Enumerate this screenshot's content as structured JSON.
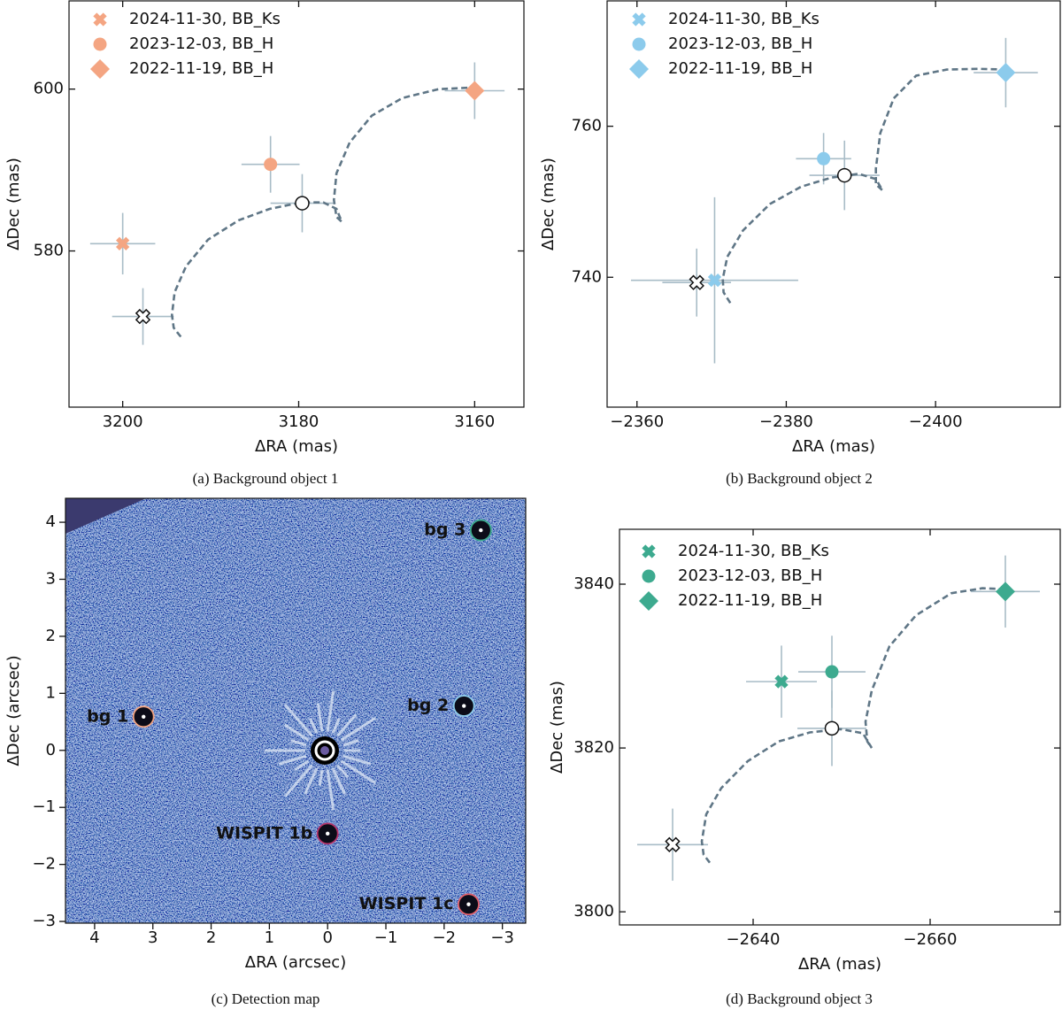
{
  "chart_data": [
    {
      "type": "scatter",
      "caption": "(a) Background object 1",
      "xlabel": "ΔRA (mas)",
      "ylabel": "ΔDec (mas)",
      "xlim": [
        3206.1,
        3154.4
      ],
      "ylim": [
        560.7,
        610.9
      ],
      "xticks": [
        3200,
        3180,
        3160
      ],
      "yticks": [
        580,
        600
      ],
      "legend": "upper left",
      "errorbar_color": "#a8bcc7",
      "series": [
        {
          "name": "2024-11-30, BB_Ks",
          "color": "#f4a582",
          "marker": "X",
          "x": [
            3200
          ],
          "values": [
            580.9
          ],
          "xerr": [
            3.7
          ],
          "yerr": [
            3.8
          ]
        },
        {
          "name": "2023-12-03, BB_H",
          "color": "#f4a582",
          "marker": "o",
          "x": [
            3183.2
          ],
          "values": [
            590.7
          ],
          "xerr": [
            3.3
          ],
          "yerr": [
            3.5
          ]
        },
        {
          "name": "2022-11-19, BB_H",
          "color": "#f4a582",
          "marker": "D",
          "x": [
            3160
          ],
          "values": [
            599.8
          ],
          "xerr": [
            3.4
          ],
          "yerr": [
            3.5
          ]
        }
      ],
      "model_points": [
        {
          "marker": "X",
          "color": "#ffffff",
          "x": [
            3197.7
          ],
          "values": [
            571.9
          ],
          "xerr": [
            3.5
          ],
          "yerr": [
            3.5
          ]
        },
        {
          "marker": "o",
          "color": "#ffffff",
          "x": [
            3179.6
          ],
          "values": [
            585.9
          ],
          "xerr": [
            3.6
          ],
          "yerr": [
            3.6
          ]
        }
      ],
      "track": {
        "color": "#5f7686",
        "x": [
          3193.4,
          3194.2,
          3194.4,
          3194.1,
          3192.8,
          3190.3,
          3186.8,
          3183.3,
          3179.7,
          3177.2,
          3175.7,
          3175.1,
          3175.7,
          3176.0,
          3175.7,
          3174.2,
          3171.7,
          3168.2,
          3164.1,
          3160.0
        ],
        "values": [
          569.4,
          570.5,
          572.1,
          574.9,
          578.1,
          581.4,
          583.8,
          585.2,
          586.0,
          586.0,
          585.2,
          583.6,
          584.2,
          586.3,
          589.6,
          593.4,
          596.7,
          598.9,
          600.0,
          600.2
        ]
      }
    },
    {
      "type": "scatter",
      "caption": "(b) Background object 2",
      "xlabel": "ΔRA (mas)",
      "ylabel": "ΔDec (mas)",
      "xlim": [
        -2356.0,
        -2416.7
      ],
      "ylim": [
        722.8,
        776.6
      ],
      "xticks": [
        {
          "value": -2360,
          "label": "−2360"
        },
        {
          "value": -2380,
          "label": "−2380"
        },
        {
          "value": -2400,
          "label": "−2400"
        }
      ],
      "yticks": [
        740,
        760
      ],
      "legend": "upper left",
      "errorbar_color": "#a8bcc7",
      "series": [
        {
          "name": "2024-11-30, BB_Ks",
          "color": "#8ccbec",
          "marker": "X",
          "x": [
            -2370.4
          ],
          "values": [
            739.6
          ],
          "xerr": [
            11.2
          ],
          "yerr": [
            11.0
          ]
        },
        {
          "name": "2023-12-03, BB_H",
          "color": "#8ccbec",
          "marker": "o",
          "x": [
            -2385.0
          ],
          "values": [
            755.7
          ],
          "xerr": [
            3.7
          ],
          "yerr": [
            3.4
          ]
        },
        {
          "name": "2022-11-19, BB_H",
          "color": "#8ccbec",
          "marker": "D",
          "x": [
            -2409.4
          ],
          "values": [
            767.1
          ],
          "xerr": [
            4.3
          ],
          "yerr": [
            4.6
          ]
        }
      ],
      "model_points": [
        {
          "marker": "X",
          "color": "#ffffff",
          "x": [
            -2368.0
          ],
          "values": [
            739.3
          ],
          "xerr": [
            4.6
          ],
          "yerr": [
            4.5
          ]
        },
        {
          "marker": "o",
          "color": "#ffffff",
          "x": [
            -2387.8
          ],
          "values": [
            753.5
          ],
          "xerr": [
            4.7
          ],
          "yerr": [
            4.6
          ]
        }
      ],
      "track": {
        "color": "#5f7686",
        "x": [
          -2372.5,
          -2371.6,
          -2371.5,
          -2372.1,
          -2374.2,
          -2377.8,
          -2382.0,
          -2386.1,
          -2389.7,
          -2392.0,
          -2392.9,
          -2392.0,
          -2392.0,
          -2392.6,
          -2394.4,
          -2397.4,
          -2401.5,
          -2405.7,
          -2409.4
        ],
        "values": [
          736.6,
          738.0,
          739.8,
          742.7,
          746.2,
          749.7,
          752.0,
          753.2,
          753.7,
          753.0,
          751.5,
          752.3,
          754.4,
          759.1,
          763.7,
          766.7,
          767.5,
          767.6,
          767.5
        ]
      }
    },
    {
      "type": "image",
      "caption": "(c) Detection map",
      "xlabel": "ΔRA (arcsec)",
      "ylabel": "ΔDec (arcsec)",
      "xlim": [
        4.5,
        -3.4
      ],
      "ylim": [
        -3.03,
        4.42
      ],
      "xticks": [
        4,
        3,
        2,
        1,
        0,
        {
          "value": -1,
          "label": "−1"
        },
        {
          "value": -2,
          "label": "−2"
        },
        {
          "value": -3,
          "label": "−3"
        }
      ],
      "yticks": [
        {
          "value": -3,
          "label": "−3"
        },
        {
          "value": -2,
          "label": "−2"
        },
        {
          "value": -1,
          "label": "−1"
        },
        0,
        1,
        2,
        3,
        4
      ],
      "sources": [
        {
          "label": "bg 3",
          "color": "#3daa8f",
          "x": -2.63,
          "y": 3.86
        },
        {
          "label": "bg 1",
          "color": "#f4a582",
          "x": 3.16,
          "y": 0.59
        },
        {
          "label": "bg 2",
          "color": "#8ccbec",
          "x": -2.34,
          "y": 0.78
        },
        {
          "label": "WISPIT 1b",
          "color": "#b5346a",
          "x": 0.0,
          "y": -1.46
        },
        {
          "label": "WISPIT 1c",
          "color": "#e4606b",
          "x": -2.42,
          "y": -2.7
        }
      ]
    },
    {
      "type": "scatter",
      "caption": "(d) Background object 3",
      "xlabel": "ΔRA (mas)",
      "ylabel": "ΔDec (mas)",
      "xlim": [
        -2624.9,
        -2674.7
      ],
      "ylim": [
        3798.4,
        3846.7
      ],
      "xticks": [
        {
          "value": -2640,
          "label": "−2640"
        },
        {
          "value": -2660,
          "label": "−2660"
        }
      ],
      "yticks": [
        3800,
        3820,
        3840
      ],
      "legend": "upper left",
      "errorbar_color": "#a8bcc7",
      "series": [
        {
          "name": "2024-11-30, BB_Ks",
          "color": "#3daa8f",
          "marker": "X",
          "x": [
            -2643.2
          ],
          "values": [
            3828.1
          ],
          "xerr": [
            4.0
          ],
          "yerr": [
            4.4
          ]
        },
        {
          "name": "2023-12-03, BB_H",
          "color": "#3daa8f",
          "marker": "o",
          "x": [
            -2648.9
          ],
          "values": [
            3829.3
          ],
          "xerr": [
            3.8
          ],
          "yerr": [
            4.4
          ]
        },
        {
          "name": "2022-11-19, BB_H",
          "color": "#3daa8f",
          "marker": "D",
          "x": [
            -2668.5
          ],
          "values": [
            3839.1
          ],
          "xerr": [
            3.9
          ],
          "yerr": [
            4.4
          ]
        }
      ],
      "model_points": [
        {
          "marker": "X",
          "color": "#ffffff",
          "x": [
            -2630.9
          ],
          "values": [
            3808.2
          ],
          "xerr": [
            4.0
          ],
          "yerr": [
            4.4
          ]
        },
        {
          "marker": "o",
          "color": "#ffffff",
          "x": [
            -2648.9
          ],
          "values": [
            3822.4
          ],
          "xerr": [
            3.9
          ],
          "yerr": [
            4.6
          ]
        }
      ],
      "track": {
        "color": "#5f7686",
        "x": [
          -2635.1,
          -2634.4,
          -2634.2,
          -2634.7,
          -2636.4,
          -2639.4,
          -2642.9,
          -2646.4,
          -2649.9,
          -2652.4,
          -2653.4,
          -2652.9,
          -2652.7,
          -2653.4,
          -2655.4,
          -2658.4,
          -2662.4,
          -2665.9,
          -2668.5
        ],
        "values": [
          3806.0,
          3807.0,
          3808.6,
          3811.9,
          3815.1,
          3818.4,
          3820.8,
          3821.9,
          3822.3,
          3821.8,
          3820.0,
          3820.8,
          3823.2,
          3827.0,
          3832.4,
          3836.2,
          3838.9,
          3839.5,
          3839.4
        ]
      }
    }
  ]
}
